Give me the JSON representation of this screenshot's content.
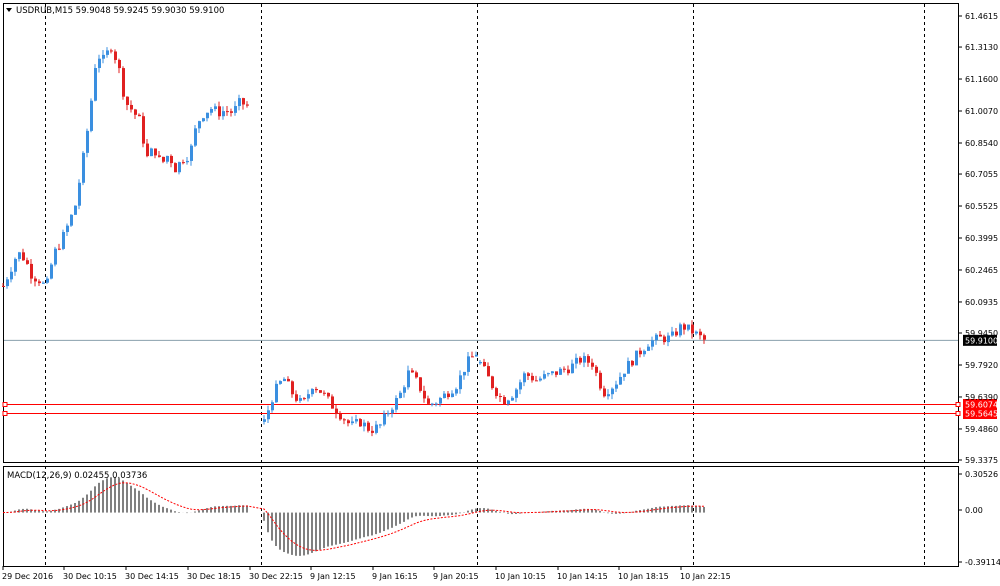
{
  "symbol_line": "USDRUB,M15  59.9048 59.9245 59.9030 59.9100",
  "colors": {
    "bull": "#3a8fe0",
    "bear": "#e02020",
    "grid": "#000000",
    "bid_line": "#8aa1ad",
    "hline": "#ff0000",
    "macd_hist": "#808080",
    "macd_signal": "#ff0000"
  },
  "price_axis": {
    "min": 59.3375,
    "max": 61.4615,
    "ticks": [
      "61.4615",
      "61.3130",
      "61.1600",
      "61.0070",
      "60.8540",
      "60.7055",
      "60.5525",
      "60.3995",
      "60.2465",
      "60.0935",
      "59.9450",
      "59.7920",
      "59.6390",
      "59.4860",
      "59.3375"
    ]
  },
  "current_price": {
    "label": "59.9100",
    "value": 59.91
  },
  "levels": [
    {
      "label": "59.6074",
      "value": 59.6074
    },
    {
      "label": "59.5645",
      "value": 59.5645
    }
  ],
  "macd": {
    "label": "MACD(12,26,9) 0.02455 0.03736",
    "axis_ticks": [
      "0.30526",
      "0.00",
      "-0.39114"
    ],
    "min": -0.39114,
    "max": 0.30526
  },
  "time_axis": [
    "29 Dec 2016",
    "30 Dec 10:15",
    "30 Dec 14:15",
    "30 Dec 18:15",
    "30 Dec 22:15",
    "9 Jan 12:15",
    "9 Jan 16:15",
    "9 Jan 20:15",
    "10 Jan 10:15",
    "10 Jan 14:15",
    "10 Jan 18:15",
    "10 Jan 22:15"
  ],
  "chart_data": {
    "type": "candlestick",
    "title": "USDRUB,M15",
    "ohlc_line": "59.9048 59.9245 59.9030 59.9100",
    "ylim": [
      59.3375,
      61.4615
    ],
    "segments": [
      {
        "from": 0,
        "to": 250,
        "anchors": [
          60.17,
          60.25,
          60.33,
          60.3,
          60.22,
          60.2,
          60.16,
          60.32,
          60.38,
          60.46,
          60.55,
          60.75,
          60.98,
          61.28,
          61.25,
          61.32,
          61.23,
          61.05,
          61.01,
          60.96,
          60.78,
          60.83,
          60.75,
          60.8,
          60.73,
          60.78,
          60.8,
          60.95,
          61.0,
          61.02,
          61.0,
          61.01,
          61.0,
          61.05,
          61.03
        ]
      },
      {
        "from": 261,
        "to": 477,
        "anchors": [
          59.52,
          59.66,
          59.73,
          59.65,
          59.6,
          59.7,
          59.66,
          59.6,
          59.55,
          59.5,
          59.52,
          59.48,
          59.5,
          59.58,
          59.64,
          59.76,
          59.7,
          59.6,
          59.62,
          59.66,
          59.7,
          59.8,
          59.85
        ]
      },
      {
        "from": 477,
        "to": 705,
        "anchors": [
          59.8,
          59.7,
          59.62,
          59.66,
          59.75,
          59.72,
          59.74,
          59.76,
          59.78,
          59.82,
          59.8,
          59.66,
          59.7,
          59.78,
          59.84,
          59.9,
          59.92,
          59.92,
          59.98,
          59.95,
          59.91
        ]
      }
    ]
  }
}
